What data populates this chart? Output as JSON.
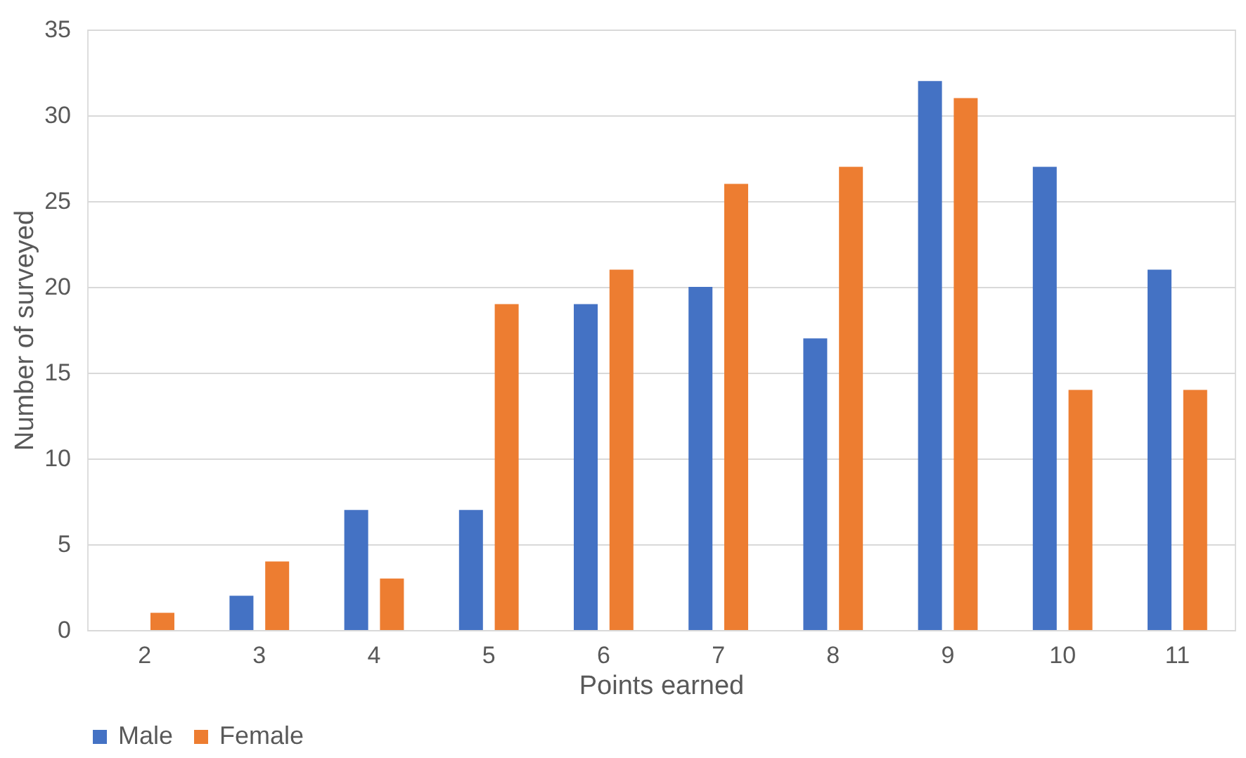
{
  "chart_data": {
    "type": "bar",
    "xlabel": "Points earned",
    "ylabel": "Number of surveyed",
    "categories": [
      "2",
      "3",
      "4",
      "5",
      "6",
      "7",
      "8",
      "9",
      "10",
      "11"
    ],
    "series": [
      {
        "name": "Male",
        "color": "#4472c4",
        "values": [
          0,
          2,
          7,
          7,
          19,
          20,
          17,
          32,
          27,
          21
        ]
      },
      {
        "name": "Female",
        "color": "#ed7d31",
        "values": [
          1,
          4,
          3,
          19,
          21,
          26,
          27,
          31,
          14,
          14
        ]
      }
    ],
    "ylim": [
      0,
      35
    ],
    "yticks": [
      0,
      5,
      10,
      15,
      20,
      25,
      30,
      35
    ],
    "grid": "y",
    "legend": "bottom"
  }
}
